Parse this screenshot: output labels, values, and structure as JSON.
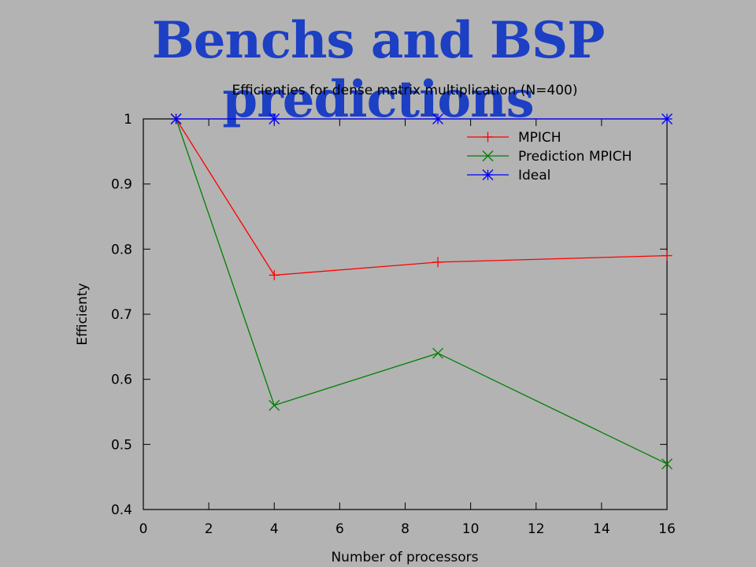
{
  "slide": {
    "title": "Benchs and BSP predictions",
    "title_color": "#1c3fc4",
    "background_color": "#b3b3b3"
  },
  "chart_data": {
    "type": "line",
    "title": "Efficienties for dense matrix multiplication (N=400)",
    "xlabel": "Number of processors",
    "ylabel": "Efficienty",
    "xlim": [
      0,
      16
    ],
    "ylim": [
      0.4,
      1.0
    ],
    "xticks": [
      0,
      2,
      4,
      6,
      8,
      10,
      12,
      14,
      16
    ],
    "yticks": [
      0.4,
      0.5,
      0.6,
      0.7,
      0.8,
      0.9,
      1.0
    ],
    "ytick_labels": [
      "0.4",
      "0.5",
      "0.6",
      "0.7",
      "0.8",
      "0.9",
      "1"
    ],
    "grid": false,
    "legend_position": "top-right",
    "series": [
      {
        "name": "MPICH",
        "color": "#ff0000",
        "marker": "plus",
        "x": [
          1,
          4,
          9,
          16
        ],
        "y": [
          1.0,
          0.76,
          0.78,
          0.79
        ]
      },
      {
        "name": "Prediction MPICH",
        "color": "#008000",
        "marker": "cross",
        "x": [
          1,
          4,
          9,
          16
        ],
        "y": [
          1.0,
          0.56,
          0.64,
          0.47
        ]
      },
      {
        "name": "Ideal",
        "color": "#0000ff",
        "marker": "star",
        "x": [
          1,
          4,
          9,
          16
        ],
        "y": [
          1.0,
          1.0,
          1.0,
          1.0
        ]
      }
    ]
  }
}
